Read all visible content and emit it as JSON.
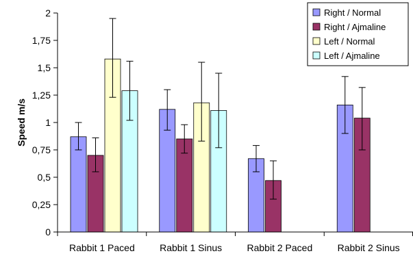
{
  "chart_data": {
    "type": "bar",
    "categories": [
      "Rabbit 1 Paced",
      "Rabbit 1 Sinus",
      "Rabbit 2 Paced",
      "Rabbit 2 Sinus"
    ],
    "series": [
      {
        "name": "Right / Normal",
        "color": "#9999ff",
        "values": [
          0.87,
          1.12,
          0.67,
          1.16
        ],
        "err_low": [
          0.75,
          0.93,
          0.55,
          0.9
        ],
        "err_high": [
          1.0,
          1.3,
          0.79,
          1.42
        ]
      },
      {
        "name": "Right / Ajmaline",
        "color": "#993366",
        "values": [
          0.7,
          0.85,
          0.47,
          1.04
        ],
        "err_low": [
          0.55,
          0.72,
          0.3,
          0.75
        ],
        "err_high": [
          0.86,
          0.98,
          0.65,
          1.32
        ]
      },
      {
        "name": "Left / Normal",
        "color": "#ffffcc",
        "values": [
          1.58,
          1.18,
          null,
          null
        ],
        "err_low": [
          1.23,
          0.83,
          null,
          null
        ],
        "err_high": [
          1.95,
          1.55,
          null,
          null
        ]
      },
      {
        "name": "Left / Ajmaline",
        "color": "#ccffff",
        "values": [
          1.29,
          1.11,
          null,
          null
        ],
        "err_low": [
          1.02,
          0.77,
          null,
          null
        ],
        "err_high": [
          1.56,
          1.45,
          null,
          null
        ]
      }
    ],
    "ylabel": "Speed m/s",
    "ylim": [
      0,
      2
    ],
    "yticks": [
      "0",
      "0,25",
      "0,5",
      "0,75",
      "1",
      "1,25",
      "1,5",
      "1,75",
      "2"
    ],
    "ytick_values": [
      0,
      0.25,
      0.5,
      0.75,
      1,
      1.25,
      1.5,
      1.75,
      2
    ],
    "grid": false,
    "legend_position": "top-right"
  }
}
